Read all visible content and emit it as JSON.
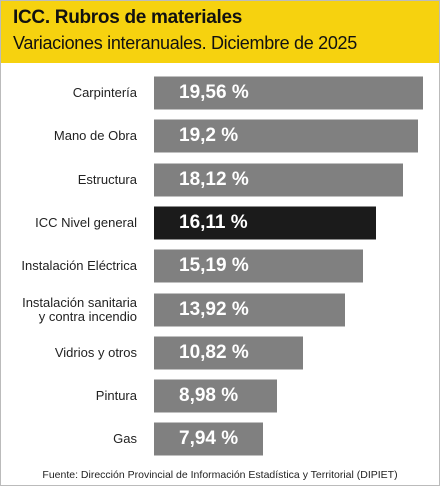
{
  "chart_data": {
    "type": "bar",
    "orientation": "horizontal",
    "title": "ICC. Rubros de materiales",
    "subtitle": "Variaciones interanuales. Diciembre de 2025",
    "categories": [
      "Carpintería",
      "Mano de Obra",
      "Estructura",
      "ICC Nivel general",
      "Instalación Eléctrica",
      "Instalación sanitaria\ny contra incendio",
      "Vidrios y otros",
      "Pintura",
      "Gas"
    ],
    "values": [
      19.56,
      19.2,
      18.12,
      16.11,
      15.19,
      13.92,
      10.82,
      8.98,
      7.94
    ],
    "value_labels": [
      "19,56 %",
      "19,2 %",
      "18,12 %",
      "16,11 %",
      "15,19 %",
      "13,92 %",
      "10,82 %",
      "8,98 %",
      "7,94 %"
    ],
    "colors": [
      "#808080",
      "#808080",
      "#808080",
      "#1b1b1b",
      "#808080",
      "#808080",
      "#808080",
      "#808080",
      "#808080"
    ],
    "xlim": [
      0,
      20
    ],
    "source": "Fuente: Dirección Provincial de Información Estadística y Territorial (DIPIET)"
  }
}
